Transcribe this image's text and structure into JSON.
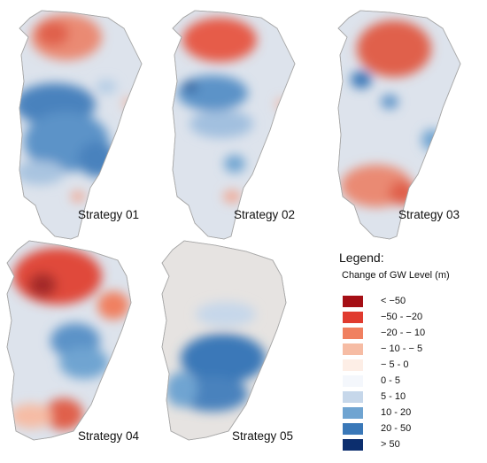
{
  "maps": [
    {
      "label": "Strategy 01"
    },
    {
      "label": "Strategy 02"
    },
    {
      "label": "Strategy 03"
    },
    {
      "label": "Strategy 04"
    },
    {
      "label": "Strategy 05"
    }
  ],
  "legend": {
    "title": "Legend:",
    "subtitle": "Change of GW Level (m)",
    "items": [
      {
        "label": "< −50",
        "color": "#a50f15"
      },
      {
        "label": "−50 - −20",
        "color": "#e03b2f"
      },
      {
        "label": "−20 - − 10",
        "color": "#f08060"
      },
      {
        "label": "− 10 - − 5",
        "color": "#f6bca4"
      },
      {
        "label": "− 5 - 0",
        "color": "#fdeee6"
      },
      {
        "label": "0 - 5",
        "color": "#f4f7fc"
      },
      {
        "label": "5 - 10",
        "color": "#c6d7ea"
      },
      {
        "label": "10 - 20",
        "color": "#6fa4d1"
      },
      {
        "label": "20 - 50",
        "color": "#3a78b8"
      },
      {
        "label": "> 50",
        "color": "#0c2e6e"
      }
    ]
  }
}
